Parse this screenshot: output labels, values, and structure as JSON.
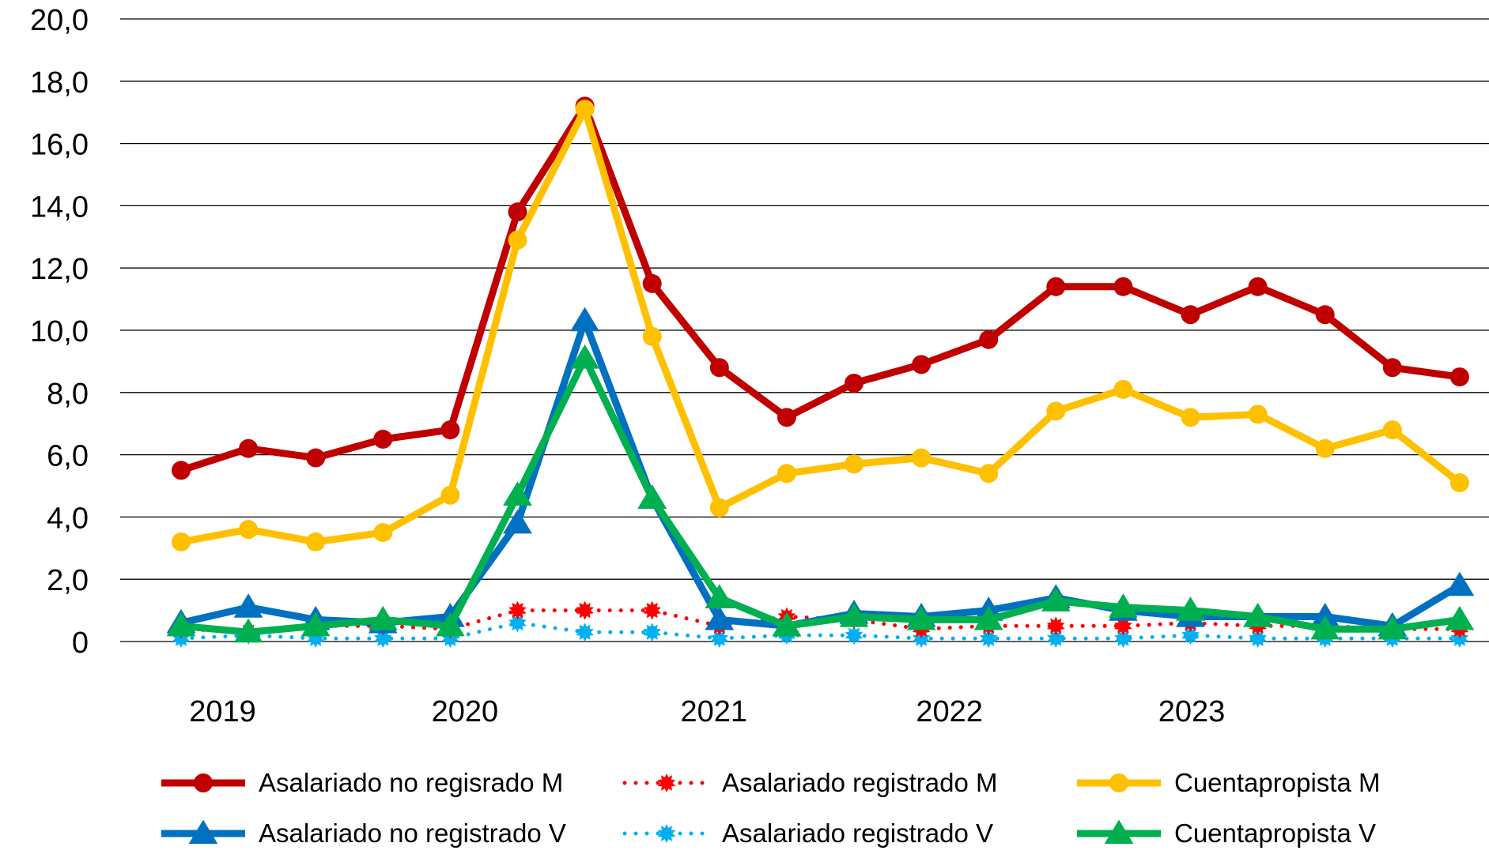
{
  "chart_data": {
    "type": "line",
    "title": "",
    "xlabel": "",
    "ylabel": "",
    "ylim": [
      0,
      20
    ],
    "y_ticks": [
      "0",
      "2,0",
      "4,0",
      "6,0",
      "8,0",
      "10,0",
      "12,0",
      "14,0",
      "16,0",
      "18,0",
      "20,0"
    ],
    "x_year_labels": [
      "2019",
      "2020",
      "2021",
      "2022",
      "2023"
    ],
    "grid": true,
    "legend_position": "bottom",
    "x": [
      "2019-T1",
      "2019-T2",
      "2019-T3",
      "2019-T4",
      "2020-T1",
      "2020-T2",
      "2020-T3",
      "2020-T4",
      "2021-T1",
      "2021-T2",
      "2021-T3",
      "2021-T4",
      "2022-T1",
      "2022-T2",
      "2022-T3",
      "2022-T4",
      "2023-T1",
      "2023-T2",
      "2023-T3",
      "2023-T4"
    ],
    "series": [
      {
        "name": "Asalariado no regisrado M",
        "color": "#C00000",
        "style": "solid",
        "marker": "circle",
        "values": [
          5.5,
          6.2,
          5.9,
          6.5,
          6.8,
          13.8,
          17.2,
          11.5,
          8.8,
          7.2,
          8.3,
          8.9,
          9.7,
          11.4,
          11.4,
          10.5,
          11.4,
          10.5,
          8.8,
          8.5
        ]
      },
      {
        "name": "Asalariado registrado M",
        "color": "#FF0000",
        "style": "dotted",
        "marker": "star",
        "values": [
          0.4,
          0.3,
          0.5,
          0.5,
          0.4,
          1.0,
          1.0,
          1.0,
          0.5,
          0.8,
          0.7,
          0.4,
          0.5,
          0.5,
          0.5,
          0.6,
          0.5,
          0.5,
          0.4,
          0.4
        ]
      },
      {
        "name": "Cuentapropista M",
        "color": "#FFC000",
        "style": "solid",
        "marker": "circle",
        "values": [
          3.2,
          3.6,
          3.2,
          3.5,
          4.7,
          12.9,
          17.1,
          9.8,
          4.3,
          5.4,
          5.7,
          5.9,
          5.4,
          7.4,
          8.1,
          7.2,
          7.3,
          6.2,
          6.8,
          5.1
        ]
      },
      {
        "name": "Asalariado no registrado V",
        "color": "#0070C0",
        "style": "solid",
        "marker": "triangle",
        "values": [
          0.6,
          1.1,
          0.7,
          0.6,
          0.8,
          3.8,
          10.3,
          4.6,
          0.7,
          0.5,
          0.9,
          0.8,
          1.0,
          1.4,
          1.0,
          0.8,
          0.8,
          0.8,
          0.5,
          1.8
        ]
      },
      {
        "name": "Asalariado registrado V",
        "color": "#00B0F0",
        "style": "dotted",
        "marker": "star",
        "values": [
          0.1,
          0.2,
          0.1,
          0.1,
          0.1,
          0.6,
          0.3,
          0.3,
          0.1,
          0.2,
          0.2,
          0.1,
          0.1,
          0.1,
          0.1,
          0.2,
          0.1,
          0.1,
          0.1,
          0.1
        ]
      },
      {
        "name": "Cuentapropista V",
        "color": "#00B050",
        "style": "solid",
        "marker": "triangle",
        "values": [
          0.5,
          0.3,
          0.5,
          0.7,
          0.5,
          4.7,
          9.1,
          4.6,
          1.4,
          0.5,
          0.8,
          0.7,
          0.7,
          1.3,
          1.1,
          1.0,
          0.8,
          0.4,
          0.4,
          0.7
        ]
      }
    ]
  }
}
